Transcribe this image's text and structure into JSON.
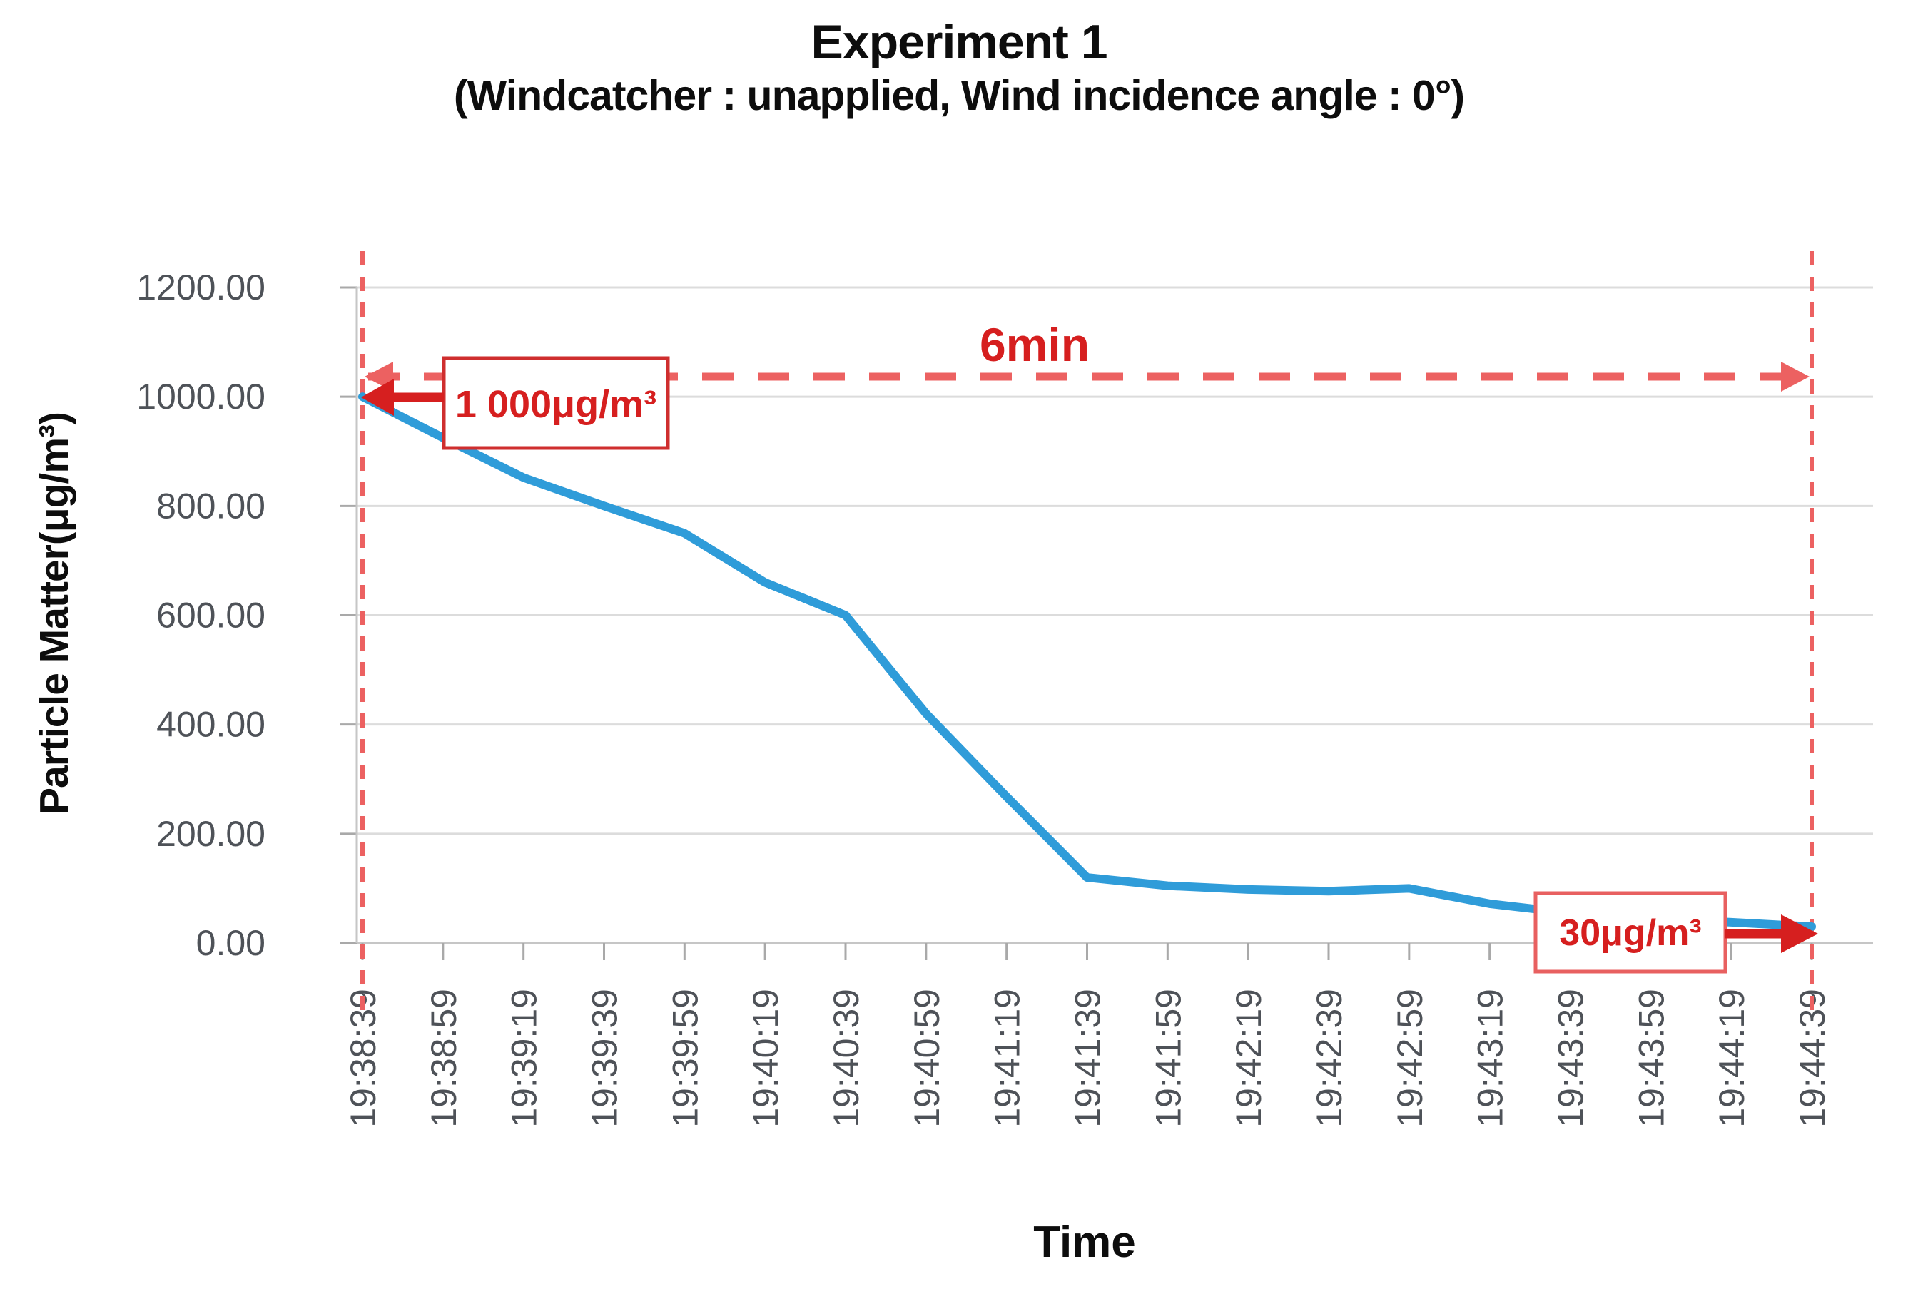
{
  "title": {
    "line1": "Experiment 1",
    "line2": "(Windcatcher : unapplied, Wind incidence angle : 0°)"
  },
  "chart_data": {
    "type": "line",
    "title": "Experiment 1 (Windcatcher : unapplied, Wind incidence angle : 0°)",
    "xlabel": "Time",
    "ylabel": "Particle Matter(μg/m³)",
    "x": [
      "19:38:39",
      "19:38:59",
      "19:39:19",
      "19:39:39",
      "19:39:59",
      "19:40:19",
      "19:40:39",
      "19:40:59",
      "19:41:19",
      "19:41:39",
      "19:41:59",
      "19:42:19",
      "19:42:39",
      "19:42:59",
      "19:43:19",
      "19:43:39",
      "19:43:59",
      "19:44:19",
      "19:44:39"
    ],
    "series": [
      {
        "name": "Particle Matter",
        "values": [
          1000,
          925,
          852,
          800,
          750,
          660,
          600,
          420,
          268,
          120,
          105,
          98,
          95,
          100,
          72,
          55,
          45,
          38,
          30
        ]
      }
    ],
    "ylim": [
      0,
      1200
    ],
    "y_ticks": [
      0,
      200,
      400,
      600,
      800,
      1000,
      1200
    ],
    "y_tick_labels": [
      "0.00",
      "200.00",
      "400.00",
      "600.00",
      "800.00",
      "1000.00",
      "1200.00"
    ],
    "grid": "horizontal",
    "legend": false,
    "annotations": {
      "start_label": "1 000μg/m³",
      "start_value": 1000,
      "end_label": "30μg/m³",
      "end_value": 30,
      "duration_label": "6min"
    }
  },
  "colors": {
    "line": "#2f9cd9",
    "grid": "#dcdcdc",
    "axis": "#c6c6c6",
    "tick_mark": "#a9a9a9",
    "tick_text": "#4e5258",
    "red": "#d61f1f",
    "pink": "#ec6161",
    "box1_border": "#cf2e2e",
    "box2_border": "#e86060",
    "box_fill": "#ffffff"
  }
}
